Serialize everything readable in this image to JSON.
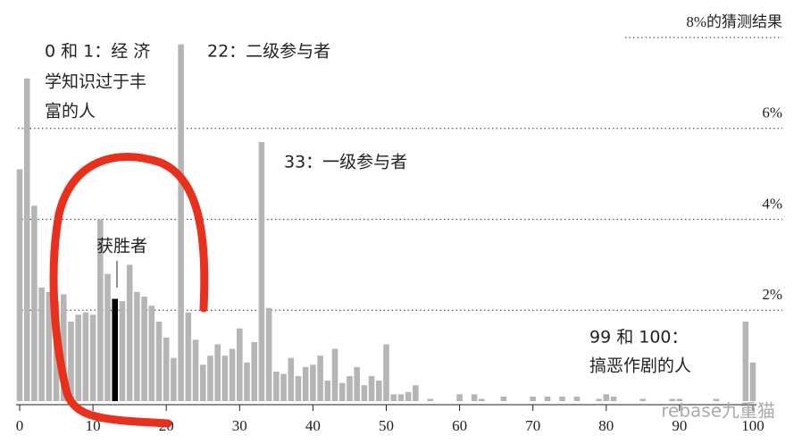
{
  "chart_data": {
    "type": "bar",
    "x": [
      0,
      1,
      2,
      3,
      4,
      5,
      6,
      7,
      8,
      9,
      10,
      11,
      12,
      13,
      14,
      15,
      16,
      17,
      18,
      19,
      20,
      21,
      22,
      23,
      24,
      25,
      26,
      27,
      28,
      29,
      30,
      31,
      32,
      33,
      34,
      35,
      36,
      37,
      38,
      39,
      40,
      41,
      42,
      43,
      44,
      45,
      46,
      47,
      48,
      49,
      50,
      51,
      52,
      53,
      54,
      55,
      56,
      57,
      58,
      59,
      60,
      61,
      62,
      63,
      64,
      65,
      66,
      67,
      68,
      69,
      70,
      71,
      72,
      73,
      74,
      75,
      76,
      77,
      78,
      79,
      80,
      81,
      82,
      83,
      84,
      85,
      86,
      87,
      88,
      89,
      90,
      91,
      92,
      93,
      94,
      95,
      96,
      97,
      98,
      99,
      100
    ],
    "values": [
      5.1,
      7.1,
      4.3,
      2.5,
      2.4,
      2.2,
      2.35,
      1.75,
      1.9,
      1.95,
      1.9,
      4.0,
      2.8,
      2.25,
      2.2,
      3.0,
      2.4,
      2.3,
      2.1,
      1.75,
      1.4,
      0.95,
      7.85,
      1.95,
      1.35,
      0.8,
      1.0,
      1.25,
      1.0,
      1.15,
      1.6,
      0.85,
      1.3,
      5.7,
      2.05,
      0.65,
      0.6,
      0.95,
      0.55,
      0.75,
      0.8,
      1.0,
      0.45,
      1.15,
      0.4,
      0.55,
      0.75,
      0.35,
      0.55,
      0.45,
      1.25,
      0.15,
      0.15,
      0.2,
      0.35,
      0,
      0.05,
      0,
      0,
      0,
      0.15,
      0,
      0.15,
      0.05,
      0,
      0,
      0.1,
      0,
      0,
      0,
      0.1,
      0,
      0.1,
      0,
      0.1,
      0,
      0.1,
      0,
      0,
      0.05,
      0.15,
      0.1,
      0,
      0,
      0,
      0.05,
      0,
      0,
      0,
      0.05,
      0.05,
      0,
      0,
      0,
      0,
      0.05,
      0,
      0,
      0,
      1.75,
      0.85
    ],
    "color": "#b5b5b5",
    "winner": 13,
    "winner_color": "#000000",
    "xlim": [
      0,
      100
    ],
    "xticks": [
      0,
      10,
      20,
      30,
      40,
      50,
      60,
      70,
      80,
      90,
      100
    ],
    "ylim": [
      0,
      8
    ],
    "yticks": [
      {
        "value": 2,
        "label": "2%"
      },
      {
        "value": 4,
        "label": "4%"
      },
      {
        "value": 6,
        "label": "6%"
      },
      {
        "value": 8,
        "label": "8%的猜测结果"
      }
    ],
    "grid": true,
    "annotations": [
      {
        "lines": [
          "0 和 1：经 济",
          "学知识过于丰",
          "富的人"
        ]
      },
      {
        "lines": [
          "22：二级参与者"
        ]
      },
      {
        "lines": [
          "33：一级参与者"
        ]
      },
      {
        "lines": [
          "获胜者"
        ]
      },
      {
        "lines": [
          "99 和 100：",
          "搞恶作剧的人"
        ]
      }
    ],
    "watermark": "rebase九重猫"
  }
}
